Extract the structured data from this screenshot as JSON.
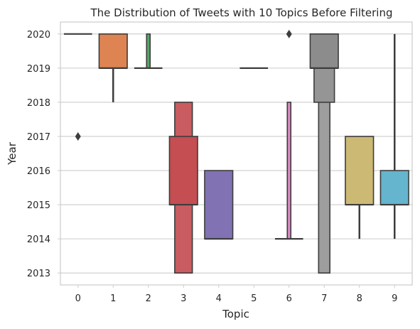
{
  "chart_data": {
    "type": "boxen",
    "title": "The Distribution of Tweets with 10 Topics Before Filtering",
    "xlabel": "Topic",
    "ylabel": "Year",
    "categories": [
      "0",
      "1",
      "2",
      "3",
      "4",
      "5",
      "6",
      "7",
      "8",
      "9"
    ],
    "yticks": [
      2013,
      2014,
      2015,
      2016,
      2017,
      2018,
      2019,
      2020
    ],
    "ylim": [
      2012.65,
      2020.35
    ],
    "grid": "horizontal",
    "series": [
      {
        "category": "0",
        "color": "#4c72b0",
        "boxes": [],
        "median": 2020,
        "whisker": [
          2020,
          2020
        ],
        "outliers": [
          2017
        ]
      },
      {
        "category": "1",
        "color": "#dd8452",
        "boxes": [
          [
            2019,
            2020
          ]
        ],
        "median": 2019,
        "whisker": [
          2018,
          2019
        ],
        "outliers": []
      },
      {
        "category": "2",
        "color": "#55a868",
        "boxes": [
          [
            2019,
            2020
          ]
        ],
        "median": 2019,
        "whisker": [
          2019,
          2019
        ],
        "outliers": []
      },
      {
        "category": "3",
        "color": "#c44e52",
        "boxes": [
          [
            2015,
            2017
          ],
          [
            2013,
            2018
          ]
        ],
        "median": 2015,
        "whisker": [
          2013,
          2018
        ],
        "outliers": []
      },
      {
        "category": "4",
        "color": "#8172b3",
        "boxes": [
          [
            2014,
            2016
          ]
        ],
        "median": 2014,
        "whisker": [
          2014,
          2014
        ],
        "outliers": []
      },
      {
        "category": "5",
        "color": "#937860",
        "boxes": [],
        "median": 2019,
        "whisker": [
          2019,
          2019
        ],
        "outliers": []
      },
      {
        "category": "6",
        "color": "#da8bc3",
        "boxes": [
          [
            2014,
            2018
          ]
        ],
        "median": 2014,
        "whisker": [
          2014,
          2014
        ],
        "outliers": [
          2020
        ]
      },
      {
        "category": "7",
        "color": "#8c8c8c",
        "boxes": [
          [
            2019,
            2020
          ],
          [
            2018,
            2020
          ],
          [
            2013,
            2020
          ]
        ],
        "median": 2019,
        "whisker": [
          2013,
          2020
        ],
        "outliers": []
      },
      {
        "category": "8",
        "color": "#ccb974",
        "boxes": [
          [
            2015,
            2017
          ]
        ],
        "median": 2015,
        "whisker": [
          2014,
          2015
        ],
        "outliers": []
      },
      {
        "category": "9",
        "color": "#64b5cd",
        "boxes": [
          [
            2015,
            2016
          ]
        ],
        "median": 2015,
        "whisker": [
          2014,
          2020
        ],
        "outliers": []
      }
    ]
  }
}
